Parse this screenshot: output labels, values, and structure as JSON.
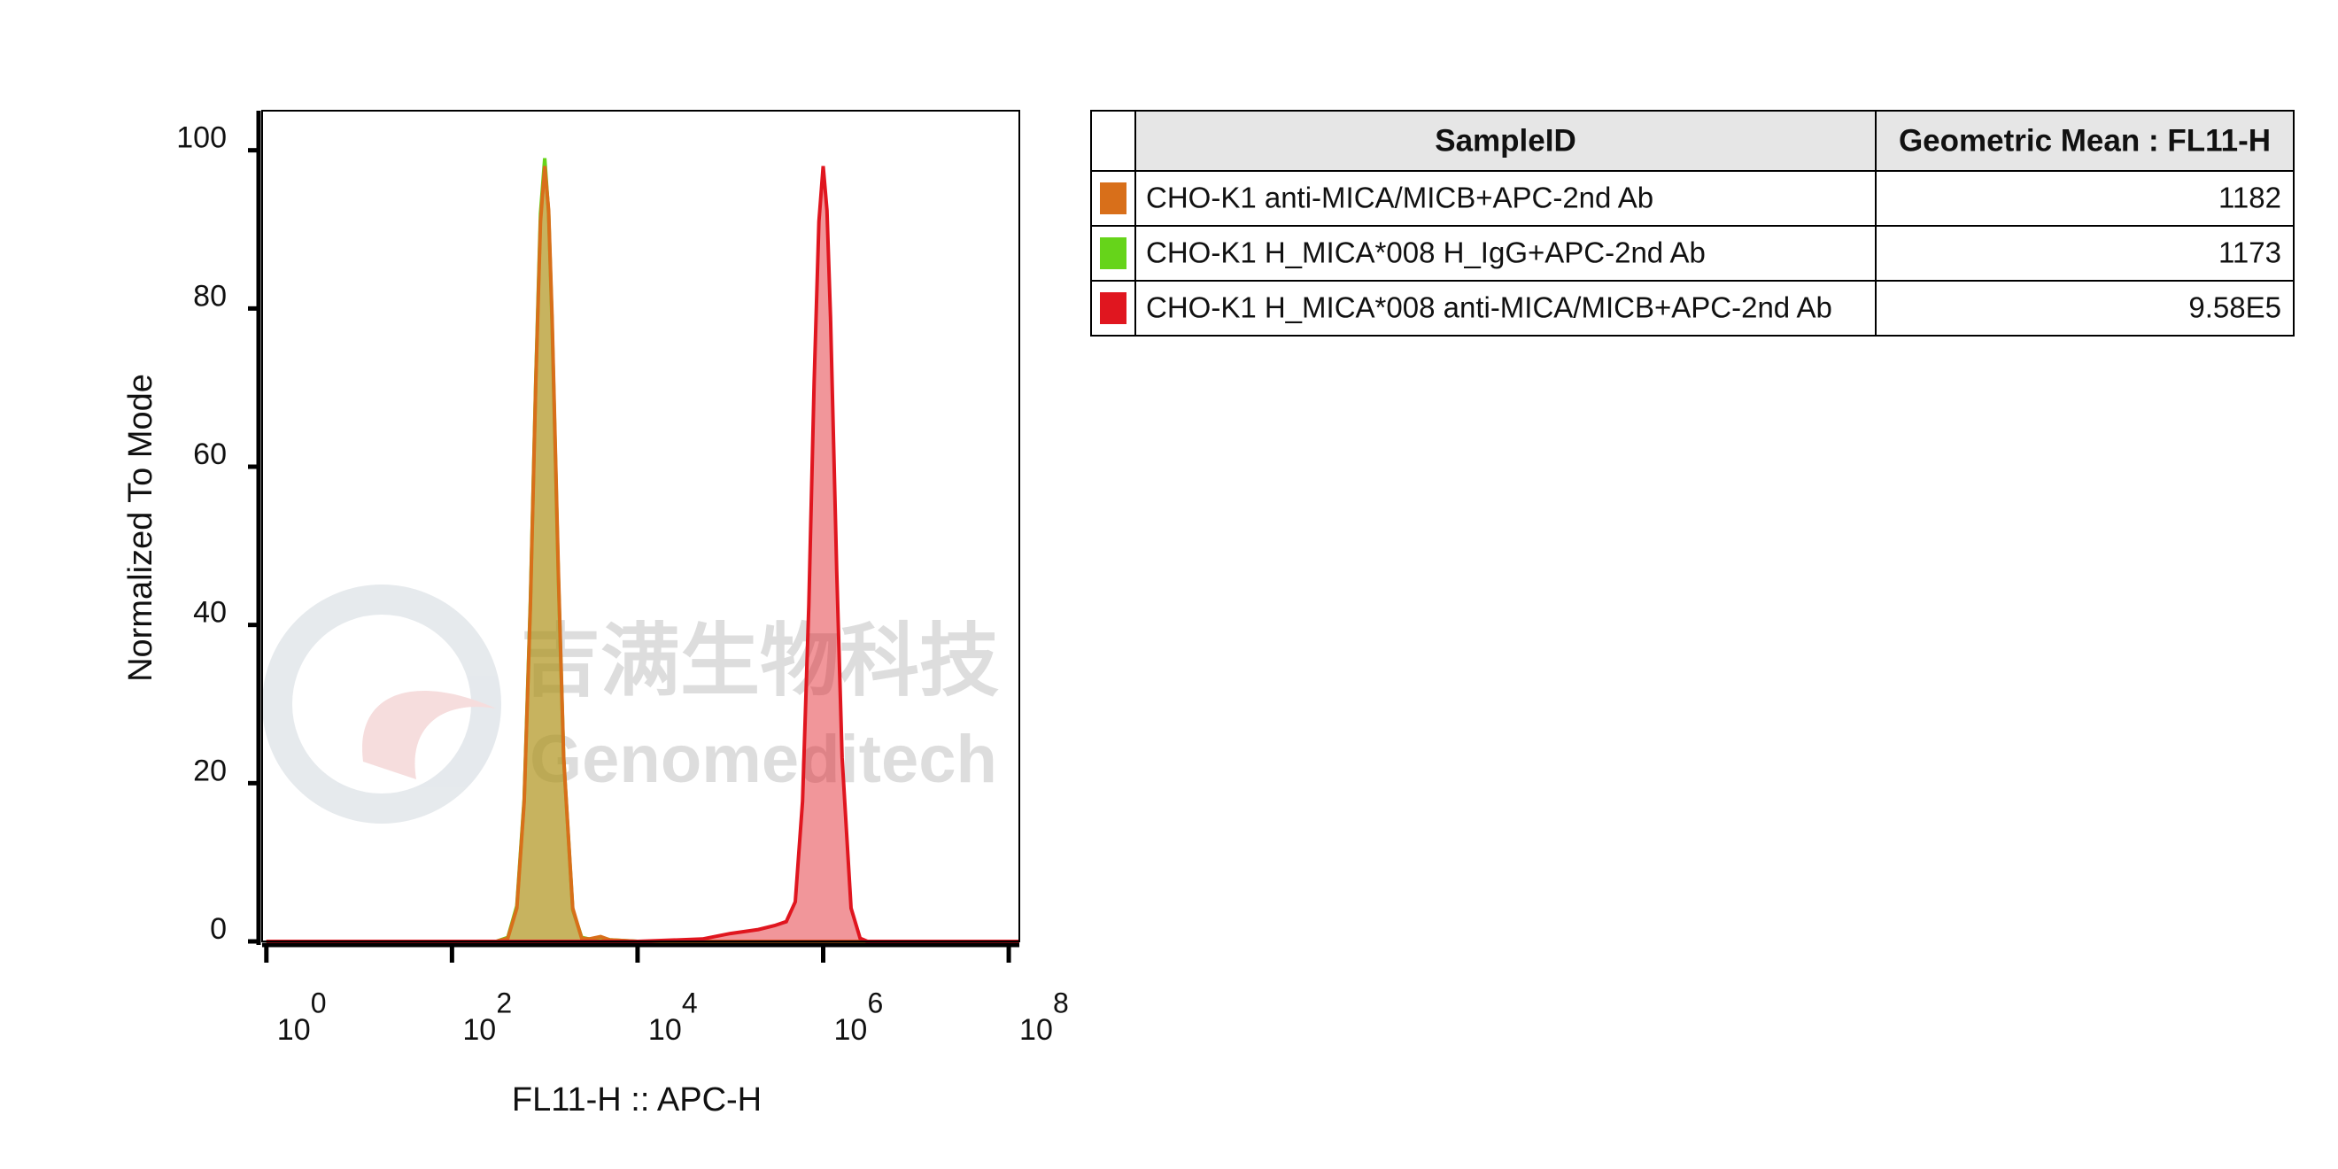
{
  "chart_data": {
    "type": "histogram-overlay",
    "x_label": "FL11-H :: APC-H",
    "y_label": "Normalized To Mode",
    "xscale": "log",
    "xlim": [
      0.9,
      130000000
    ],
    "xticks": [
      {
        "value": 1,
        "label": "10",
        "exponent": "0"
      },
      {
        "value": 100,
        "label": "10",
        "exponent": "2"
      },
      {
        "value": 10000,
        "label": "10",
        "exponent": "4"
      },
      {
        "value": 1000000,
        "label": "10",
        "exponent": "6"
      },
      {
        "value": 100000000,
        "label": "10",
        "exponent": "8"
      }
    ],
    "ylim": [
      0,
      105
    ],
    "yticks": [
      0,
      20,
      40,
      60,
      80,
      100
    ],
    "x": [
      1,
      10,
      100,
      200,
      300,
      400,
      500,
      600,
      700,
      800,
      900,
      1000,
      1100,
      1200,
      1400,
      1600,
      2000,
      2500,
      3000,
      4000,
      5000,
      10000,
      50000,
      100000,
      200000,
      300000,
      400000,
      500000,
      600000,
      700000,
      800000,
      900000,
      1000000,
      1100000,
      1200000,
      1400000,
      1600000,
      2000000,
      2500000,
      3000000,
      4000000,
      10000000,
      100000000,
      130000000
    ],
    "series": [
      {
        "name": "CHO-K1 H_MICA*008 H_IgG+APC-2nd Ab",
        "color": "#66d41a",
        "values": [
          0,
          0,
          0,
          0,
          0,
          0.5,
          4.5,
          18,
          43,
          71,
          92,
          99,
          92,
          78,
          46,
          23,
          4,
          0.5,
          0.3,
          0.5,
          0.2,
          0,
          0,
          0,
          0,
          0,
          0,
          0,
          0,
          0,
          0,
          0,
          0,
          0,
          0,
          0,
          0,
          0,
          0,
          0,
          0,
          0,
          0,
          0
        ]
      },
      {
        "name": "CHO-K1 anti-MICA/MICB+APC-2nd Ab",
        "color": "#d86f1a",
        "values": [
          0,
          0,
          0,
          0,
          0,
          0.4,
          4.2,
          17.7,
          42.5,
          70.7,
          91,
          98,
          92.4,
          78.9,
          46.8,
          23.2,
          4.2,
          0.4,
          0.3,
          0.6,
          0.2,
          0,
          0,
          0,
          0,
          0,
          0,
          0,
          0,
          0,
          0,
          0,
          0,
          0,
          0,
          0,
          0,
          0,
          0,
          0,
          0,
          0,
          0,
          0
        ]
      },
      {
        "name": "CHO-K1 H_MICA*008 anti-MICA/MICB+APC-2nd Ab",
        "color": "#e0161f",
        "values": [
          0,
          0,
          0,
          0,
          0,
          0,
          0,
          0,
          0,
          0,
          0,
          0,
          0,
          0,
          0,
          0,
          0,
          0,
          0,
          0,
          0,
          0,
          0.3,
          1,
          1.5,
          2,
          2.5,
          5,
          17.7,
          42.5,
          70.7,
          91,
          98,
          92.4,
          78.9,
          46.8,
          23.2,
          4.2,
          0.4,
          0,
          0,
          0,
          0,
          0
        ]
      }
    ],
    "table": {
      "columns": [
        "SampleID",
        "Geometric Mean : FL11-H"
      ],
      "rows": [
        {
          "color": "#d86f1a",
          "sample": "CHO-K1 anti-MICA/MICB+APC-2nd Ab",
          "value": "1182"
        },
        {
          "color": "#66d41a",
          "sample": "CHO-K1 H_MICA*008 H_IgG+APC-2nd Ab",
          "value": "1173"
        },
        {
          "color": "#e0161f",
          "sample": "CHO-K1 H_MICA*008 anti-MICA/MICB+APC-2nd Ab",
          "value": "9.58E5"
        }
      ]
    },
    "watermark": {
      "cn": "吉满生物科技",
      "en": "Genomeditech"
    }
  }
}
